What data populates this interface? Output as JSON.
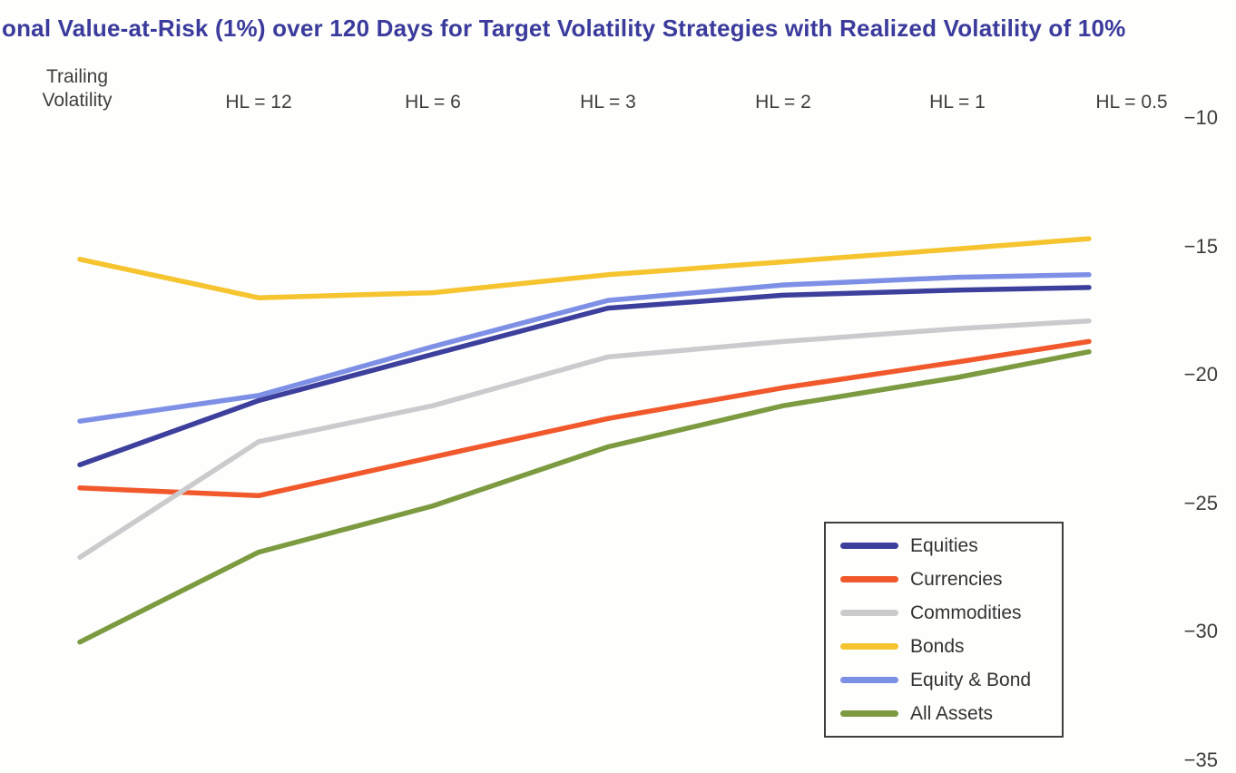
{
  "chart_data": {
    "type": "line",
    "title": "onal Value-at-Risk (1%) over 120 Days for Target Volatility Strategies with Realized Volatility of 10%",
    "title_color": "#3a3b9c",
    "categories": [
      "Trailing Volatility",
      "HL = 12",
      "HL = 6",
      "HL = 3",
      "HL = 2",
      "HL = 1",
      "HL = 0.5"
    ],
    "series": [
      {
        "name": "Equities",
        "color": "#3d3f9d",
        "values": [
          -23.5,
          -21.0,
          -19.2,
          -17.4,
          -16.9,
          -16.7,
          -16.6
        ]
      },
      {
        "name": "Currencies",
        "color": "#f1582b",
        "values": [
          -24.4,
          -24.7,
          -23.2,
          -21.7,
          -20.5,
          -19.5,
          -18.7
        ]
      },
      {
        "name": "Commodities",
        "color": "#cbcbce",
        "values": [
          -27.1,
          -22.6,
          -21.2,
          -19.3,
          -18.7,
          -18.2,
          -17.9
        ]
      },
      {
        "name": "Bonds",
        "color": "#f5c42e",
        "values": [
          -15.5,
          -17.0,
          -16.8,
          -16.1,
          -15.6,
          -15.1,
          -14.7
        ]
      },
      {
        "name": "Equity & Bond",
        "color": "#7d90e6",
        "values": [
          -21.8,
          -20.8,
          -18.9,
          -17.1,
          -16.5,
          -16.2,
          -16.1
        ]
      },
      {
        "name": "All Assets",
        "color": "#7c9a3f",
        "values": [
          -30.4,
          -26.9,
          -25.1,
          -22.8,
          -21.2,
          -20.1,
          -19.1
        ]
      }
    ],
    "y_axis": {
      "side": "right",
      "ticks": [
        -10,
        -15,
        -20,
        -25,
        -30,
        -35
      ],
      "tick_labels": [
        "−10",
        "−15",
        "−20",
        "−25",
        "−30",
        "−35"
      ],
      "ylim": [
        -35,
        -10
      ]
    },
    "grid": false,
    "legend_position": "lower right",
    "legend_entries": [
      "Equities",
      "Currencies",
      "Commodities",
      "Bonds",
      "Equity & Bond",
      "All Assets"
    ]
  }
}
